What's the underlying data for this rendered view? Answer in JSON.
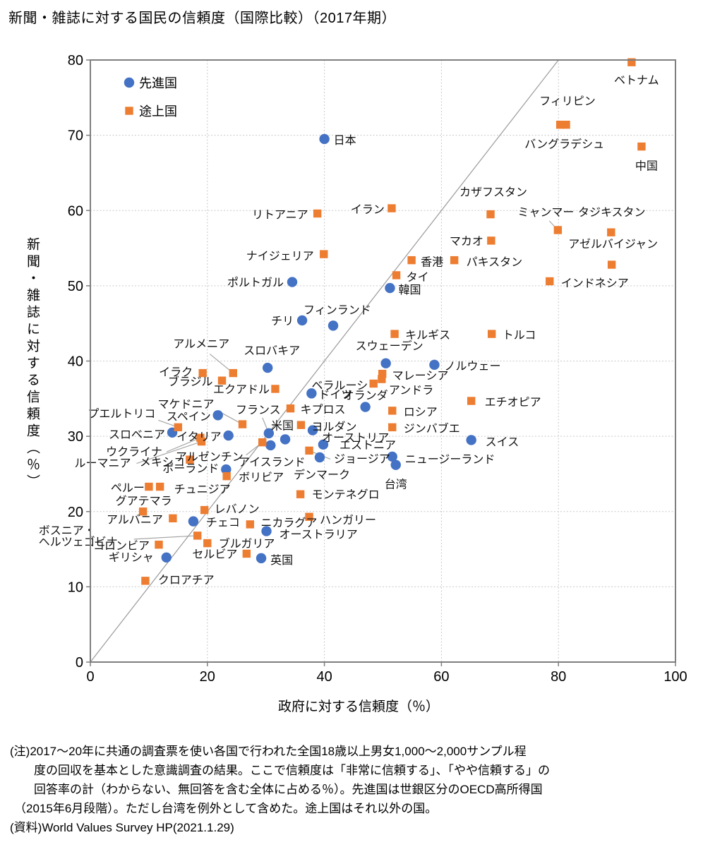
{
  "title": "新聞・雑誌に対する国民の信頼度（国際比較）（2017年期）",
  "chart_data": {
    "type": "scatter",
    "xlabel": "政府に対する信頼度（％）",
    "ylabel": "新聞・雑誌に対する信頼度（％）",
    "xlim": [
      0,
      100
    ],
    "ylim": [
      0,
      80
    ],
    "xticks": [
      0,
      20,
      40,
      60,
      80,
      100
    ],
    "yticks": [
      0,
      10,
      20,
      30,
      40,
      50,
      60,
      70,
      80
    ],
    "grid": true,
    "diagonal_line": {
      "from": [
        0,
        0
      ],
      "to": [
        80,
        80
      ]
    },
    "legend": [
      {
        "label": "先進国",
        "marker": "circle",
        "color": "#4472C4"
      },
      {
        "label": "途上国",
        "marker": "square",
        "color": "#ED7D31"
      }
    ],
    "series": [
      {
        "name": "先進国",
        "marker": "circle",
        "color": "#4472C4",
        "points": [
          {
            "l": "日本",
            "x": 40.0,
            "y": 69.5,
            "dx": 13,
            "dy": 7,
            "a": "s"
          },
          {
            "l": "韓国",
            "x": 51.2,
            "y": 49.7,
            "dx": 12,
            "dy": 8,
            "a": "s"
          },
          {
            "l": "ポルトガル",
            "x": 34.5,
            "y": 50.5,
            "dx": -12,
            "dy": 6,
            "a": "e"
          },
          {
            "l": "チリ",
            "x": 36.2,
            "y": 45.4,
            "dx": -12,
            "dy": 6,
            "a": "e"
          },
          {
            "l": "フィンランド",
            "x": 41.5,
            "y": 44.7,
            "dx": -42,
            "dy": -17,
            "a": "s"
          },
          {
            "l": "スロバキア",
            "x": 30.3,
            "y": 39.1,
            "dx": -34,
            "dy": -19,
            "a": "s"
          },
          {
            "l": "スウェーデン",
            "x": 50.5,
            "y": 39.7,
            "dx": 5,
            "dy": -19,
            "a": "m"
          },
          {
            "l": "ノルウェー",
            "x": 58.8,
            "y": 39.5,
            "dx": 14,
            "dy": 7,
            "a": "s"
          },
          {
            "l": "ドイツ",
            "x": 37.8,
            "y": 35.7,
            "dx": 10,
            "dy": 7,
            "a": "s"
          },
          {
            "l": "オランダ",
            "x": 47.0,
            "y": 33.9,
            "dx": 0,
            "dy": -11,
            "a": "m"
          },
          {
            "l": "スペイン",
            "x": 21.8,
            "y": 32.8,
            "dx": -10,
            "dy": 7,
            "a": "e"
          },
          {
            "l": "イタリア",
            "x": 23.6,
            "y": 30.1,
            "dx": -10,
            "dy": 7,
            "a": "e"
          },
          {
            "l": "スロベニア",
            "x": 14.0,
            "y": 30.5,
            "dx": -10,
            "dy": 8,
            "a": "e"
          },
          {
            "l": "フランス",
            "x": 30.5,
            "y": 30.4,
            "dx": -15,
            "dy": -28,
            "a": "m",
            "ld": [
              -9,
              -22
            ]
          },
          {
            "l": "米国",
            "x": 33.3,
            "y": 29.6,
            "dx": -4,
            "dy": -14,
            "a": "m"
          },
          {
            "l": "アイスランド",
            "x": 30.8,
            "y": 28.8,
            "dx": 2,
            "dy": 29,
            "a": "m"
          },
          {
            "l": "オーストリア",
            "x": 38.0,
            "y": 30.8,
            "dx": 13,
            "dy": 16,
            "a": "s"
          },
          {
            "l": "エストニア",
            "x": 39.8,
            "y": 28.9,
            "dx": 23,
            "dy": 6,
            "a": "s"
          },
          {
            "l": "デンマーク",
            "x": 39.2,
            "y": 27.2,
            "dx": 3,
            "dy": 30,
            "a": "m"
          },
          {
            "l": "ポーランド",
            "x": 23.2,
            "y": 25.6,
            "dx": -10,
            "dy": 4,
            "a": "e"
          },
          {
            "l": "オーストラリア",
            "x": 30.1,
            "y": 17.4,
            "dx": 18,
            "dy": 10,
            "a": "s"
          },
          {
            "l": "英国",
            "x": 29.2,
            "y": 13.8,
            "dx": 13,
            "dy": 8,
            "a": "s"
          },
          {
            "l": "ギリシャ",
            "x": 13.0,
            "y": 13.9,
            "dx": -18,
            "dy": 5,
            "a": "e"
          },
          {
            "l": "チェコ",
            "x": 17.6,
            "y": 18.7,
            "dx": 18,
            "dy": 7,
            "a": "s"
          },
          {
            "l": "台湾",
            "x": 52.2,
            "y": 26.2,
            "dx": 0,
            "dy": 33,
            "a": "m"
          },
          {
            "l": "ニュージーランド",
            "x": 51.6,
            "y": 27.3,
            "dx": 18,
            "dy": 9,
            "a": "s"
          },
          {
            "l": "スイス",
            "x": 65.1,
            "y": 29.5,
            "dx": 20,
            "dy": 8,
            "a": "s"
          }
        ]
      },
      {
        "name": "途上国",
        "marker": "square",
        "color": "#ED7D31",
        "points": [
          {
            "l": "ベトナム",
            "x": 92.5,
            "y": 79.7,
            "dx": 7,
            "dy": 31,
            "a": "m"
          },
          {
            "l": "フィリピン",
            "x": 81.3,
            "y": 71.4,
            "dx": 2,
            "dy": -28,
            "a": "m"
          },
          {
            "l": "バングラデシュ",
            "x": 80.3,
            "y": 71.4,
            "dx": 6,
            "dy": 33,
            "a": "m"
          },
          {
            "l": "中国",
            "x": 94.2,
            "y": 68.5,
            "dx": 7,
            "dy": 33,
            "a": "m"
          },
          {
            "l": "カザフスタン",
            "x": 68.4,
            "y": 59.5,
            "dx": 4,
            "dy": -26,
            "a": "m"
          },
          {
            "l": "ミャンマー",
            "x": 79.9,
            "y": 57.4,
            "dx": -17,
            "dy": -20,
            "a": "m",
            "ld": [
              -12,
              -13
            ]
          },
          {
            "l": "タジキスタン",
            "x": 89.0,
            "y": 57.1,
            "dx": 1,
            "dy": -23,
            "a": "m"
          },
          {
            "l": "アゼルバイジャン",
            "x": 89.1,
            "y": 52.8,
            "dx": 2,
            "dy": -24,
            "a": "m"
          },
          {
            "l": "マカオ",
            "x": 68.5,
            "y": 56.0,
            "dx": -11,
            "dy": 6,
            "a": "e"
          },
          {
            "l": "香港",
            "x": 54.9,
            "y": 53.4,
            "dx": 13,
            "dy": 8,
            "a": "s"
          },
          {
            "l": "パキスタン",
            "x": 62.2,
            "y": 53.4,
            "dx": 17,
            "dy": 8,
            "a": "s"
          },
          {
            "l": "タイ",
            "x": 52.3,
            "y": 51.4,
            "dx": 14,
            "dy": 8,
            "a": "s"
          },
          {
            "l": "インドネシア",
            "x": 78.5,
            "y": 50.6,
            "dx": 16,
            "dy": 8,
            "a": "s"
          },
          {
            "l": "イラン",
            "x": 51.5,
            "y": 60.3,
            "dx": -10,
            "dy": 7,
            "a": "e"
          },
          {
            "l": "リトアニア",
            "x": 38.8,
            "y": 59.6,
            "dx": -13,
            "dy": 7,
            "a": "e"
          },
          {
            "l": "ナイジェリア",
            "x": 39.9,
            "y": 54.2,
            "dx": -14,
            "dy": 8,
            "a": "e"
          },
          {
            "l": "キルギス",
            "x": 52.0,
            "y": 43.6,
            "dx": 15,
            "dy": 7,
            "a": "s"
          },
          {
            "l": "トルコ",
            "x": 68.6,
            "y": 43.6,
            "dx": 15,
            "dy": 7,
            "a": "s"
          },
          {
            "l": "マレーシア",
            "x": 49.9,
            "y": 38.3,
            "dx": 14,
            "dy": 8,
            "a": "s"
          },
          {
            "l": "アンドラ",
            "x": 49.8,
            "y": 37.6,
            "dx": 10,
            "dy": 21,
            "a": "s"
          },
          {
            "l": "ベラルーシ",
            "x": 48.4,
            "y": 37.0,
            "dx": -8,
            "dy": 8,
            "a": "e"
          },
          {
            "l": "ロシア",
            "x": 51.6,
            "y": 33.4,
            "dx": 16,
            "dy": 7,
            "a": "s"
          },
          {
            "l": "ジンバブエ",
            "x": 51.6,
            "y": 31.2,
            "dx": 16,
            "dy": 7,
            "a": "s"
          },
          {
            "l": "エチオピア",
            "x": 65.1,
            "y": 34.7,
            "dx": 19,
            "dy": 7,
            "a": "s"
          },
          {
            "l": "キプロス",
            "x": 34.2,
            "y": 33.7,
            "dx": 14,
            "dy": 7,
            "a": "s"
          },
          {
            "l": "ヨルダン",
            "x": 36.0,
            "y": 31.5,
            "dx": 15,
            "dy": 8,
            "a": "s"
          },
          {
            "l": "ジョージア",
            "x": 37.4,
            "y": 28.1,
            "dx": 35,
            "dy": 17,
            "a": "s",
            "ld": [
              30,
              12
            ]
          },
          {
            "l": "アルメニア",
            "x": 24.4,
            "y": 38.4,
            "dx": -45,
            "dy": -36,
            "a": "m",
            "ld": [
              -33,
              -27
            ]
          },
          {
            "l": "イラク",
            "x": 19.2,
            "y": 38.4,
            "dx": -14,
            "dy": 4,
            "a": "e"
          },
          {
            "l": "ブラジル",
            "x": 22.5,
            "y": 37.4,
            "dx": -13,
            "dy": 7,
            "a": "e"
          },
          {
            "l": "エクアドル",
            "x": 31.6,
            "y": 36.3,
            "dx": -8,
            "dy": 6,
            "a": "e"
          },
          {
            "l": "マケドニア",
            "x": 26.0,
            "y": 31.6,
            "dx": -40,
            "dy": -23,
            "a": "e",
            "ld": [
              -35,
              -19
            ]
          },
          {
            "l": "プエルトリコ",
            "x": 15.0,
            "y": 31.2,
            "dx": -32,
            "dy": -14,
            "a": "e",
            "ld": [
              -28,
              -10
            ]
          },
          {
            "l": "ウクライナ",
            "x": 18.8,
            "y": 29.8,
            "dx": -54,
            "dy": 25,
            "a": "e",
            "ld": [
              -48,
              20
            ]
          },
          {
            "l": "ルーマニア",
            "x": 19.0,
            "y": 29.3,
            "dx": -100,
            "dy": 36,
            "a": "e",
            "ld": [
              -92,
              31
            ]
          },
          {
            "l": "メキシコ",
            "x": 17.0,
            "y": 26.9,
            "dx": -7,
            "dy": 9,
            "a": "e"
          },
          {
            "l": "アルゼンチン",
            "x": 29.4,
            "y": 29.2,
            "dx": -27,
            "dy": 26,
            "a": "e",
            "ld": [
              -23,
              18
            ]
          },
          {
            "l": "ボリビア",
            "x": 23.3,
            "y": 24.7,
            "dx": 17,
            "dy": 7,
            "a": "s"
          },
          {
            "l": "モンテネグロ",
            "x": 35.9,
            "y": 22.3,
            "dx": 16,
            "dy": 6,
            "a": "s"
          },
          {
            "l": "ハンガリー",
            "x": 37.4,
            "y": 19.3,
            "dx": 15,
            "dy": 10,
            "a": "s"
          },
          {
            "l": "ニカラグア",
            "x": 27.3,
            "y": 18.3,
            "dx": 15,
            "dy": 3,
            "a": "s"
          },
          {
            "l": "レバノン",
            "x": 19.5,
            "y": 20.2,
            "dx": 14,
            "dy": 4,
            "a": "s"
          },
          {
            "l": "チュニジア",
            "x": 11.9,
            "y": 23.3,
            "dx": 20,
            "dy": 9,
            "a": "s"
          },
          {
            "l": "ペルー",
            "x": 10.0,
            "y": 23.3,
            "dx": -6,
            "dy": 7,
            "a": "e"
          },
          {
            "l": "グアテマラ",
            "x": 9.0,
            "y": 20.0,
            "dx": 1,
            "dy": -10,
            "a": "m"
          },
          {
            "l": "アルバニア",
            "x": 14.1,
            "y": 19.1,
            "dx": -14,
            "dy": 7,
            "a": "e"
          },
          {
            "l": "ボスニア・\nヘルツェゴビナ",
            "x": 18.3,
            "y": 16.8,
            "dx": -225,
            "dy": -2,
            "a": "s",
            "ld": [
              -90,
              5
            ]
          },
          {
            "l": "コロンビア",
            "x": 11.7,
            "y": 15.6,
            "dx": -13,
            "dy": 7,
            "a": "e"
          },
          {
            "l": "ブルガリア",
            "x": 20.0,
            "y": 15.8,
            "dx": 16,
            "dy": 6,
            "a": "s"
          },
          {
            "l": "セルビア",
            "x": 26.7,
            "y": 14.4,
            "dx": -13,
            "dy": 6,
            "a": "e"
          },
          {
            "l": "クロアチア",
            "x": 9.4,
            "y": 10.8,
            "dx": 18,
            "dy": 4,
            "a": "s"
          }
        ]
      }
    ]
  },
  "notes": [
    "(注)2017～20年に共通の調査票を使い各国で行われた全国18歳以上男女1,000～2,000サンプル程",
    "度の回収を基本とした意識調査の結果。ここで信頼度は「非常に信頼する」、「やや信頼する」の",
    "回答率の計（わからない、無回答を含む全体に占める％）。先進国は世銀区分のOECD高所得国",
    "（2015年6月段階）。ただし台湾を例外として含めた。途上国はそれ以外の国。",
    "(資料)World Values Survey HP(2021.1.29)"
  ]
}
